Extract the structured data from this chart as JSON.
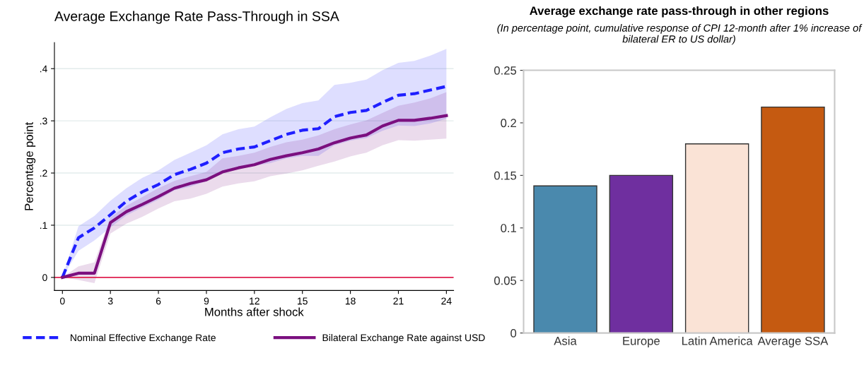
{
  "chart_data": [
    {
      "type": "line",
      "title": "Average Exchange Rate Pass-Through in SSA",
      "xlabel": "Months after shock",
      "ylabel": "Percentage point",
      "x": [
        0,
        1,
        2,
        3,
        4,
        5,
        6,
        7,
        8,
        9,
        10,
        11,
        12,
        13,
        14,
        15,
        16,
        17,
        18,
        19,
        20,
        21,
        22,
        23,
        24
      ],
      "series": [
        {
          "name": "Nominal Effective Exchange Rate",
          "color": "#1f1fff",
          "line_style": "dashed",
          "values": [
            0,
            0.076,
            0.095,
            0.12,
            0.146,
            0.164,
            0.178,
            0.197,
            0.207,
            0.219,
            0.239,
            0.246,
            0.25,
            0.262,
            0.274,
            0.282,
            0.285,
            0.308,
            0.316,
            0.32,
            0.335,
            0.349,
            0.352,
            0.359,
            0.366
          ],
          "lower": [
            0,
            0.051,
            0.071,
            0.096,
            0.119,
            0.134,
            0.149,
            0.167,
            0.174,
            0.184,
            0.202,
            0.208,
            0.214,
            0.219,
            0.228,
            0.233,
            0.233,
            0.253,
            0.262,
            0.267,
            0.281,
            0.291,
            0.29,
            0.295,
            0.304
          ],
          "upper": [
            0,
            0.098,
            0.118,
            0.147,
            0.171,
            0.191,
            0.205,
            0.225,
            0.239,
            0.253,
            0.274,
            0.284,
            0.289,
            0.307,
            0.323,
            0.334,
            0.339,
            0.369,
            0.373,
            0.379,
            0.397,
            0.411,
            0.415,
            0.425,
            0.438
          ]
        },
        {
          "name": "Bilateral Exchange Rate against USD",
          "color": "#7b0f7f",
          "line_style": "solid",
          "values": [
            0,
            0.008,
            0.008,
            0.105,
            0.126,
            0.14,
            0.155,
            0.171,
            0.18,
            0.187,
            0.202,
            0.21,
            0.216,
            0.226,
            0.233,
            0.239,
            0.246,
            0.258,
            0.267,
            0.273,
            0.29,
            0.301,
            0.301,
            0.305,
            0.31
          ],
          "lower": [
            0,
            -0.005,
            -0.011,
            0.084,
            0.103,
            0.116,
            0.132,
            0.146,
            0.151,
            0.16,
            0.174,
            0.18,
            0.184,
            0.194,
            0.199,
            0.205,
            0.214,
            0.222,
            0.232,
            0.239,
            0.253,
            0.263,
            0.262,
            0.264,
            0.266
          ],
          "upper": [
            0,
            0.021,
            0.029,
            0.115,
            0.137,
            0.154,
            0.171,
            0.185,
            0.194,
            0.202,
            0.228,
            0.233,
            0.239,
            0.25,
            0.259,
            0.264,
            0.272,
            0.284,
            0.293,
            0.301,
            0.315,
            0.329,
            0.335,
            0.343,
            0.355
          ]
        }
      ],
      "xlim": [
        -0.5,
        24.45
      ],
      "xticks": [
        0,
        3,
        6,
        9,
        12,
        15,
        18,
        21,
        24
      ],
      "ylim": [
        -0.025,
        0.45
      ],
      "yticks": [
        {
          "value": 0,
          "label": "0"
        },
        {
          "value": 0.1,
          "label": ".1"
        },
        {
          "value": 0.2,
          "label": ".2"
        },
        {
          "value": 0.3,
          "label": ".3"
        },
        {
          "value": 0.4,
          "label": ".4"
        }
      ],
      "ref_lines": [
        {
          "axis": "y",
          "value": 0,
          "color": "#e0204f"
        }
      ],
      "grid": "y",
      "legend": "bottom"
    },
    {
      "type": "bar",
      "title": "Average exchange rate pass-through in other regions",
      "subtitle": "(In percentage point, cumulative response of CPI 12-month after 1% increase of bilateral ER to US dollar)",
      "categories": [
        "Asia",
        "Europe",
        "Latin America",
        "Average SSA"
      ],
      "values": [
        0.14,
        0.15,
        0.18,
        0.215
      ],
      "colors": [
        "#4a89ad",
        "#6f2f9f",
        "#fae3d6",
        "#c55a11"
      ],
      "ylim": [
        0,
        0.25
      ],
      "yticks": [
        0,
        0.05,
        0.1,
        0.15,
        0.2,
        0.25
      ]
    }
  ]
}
